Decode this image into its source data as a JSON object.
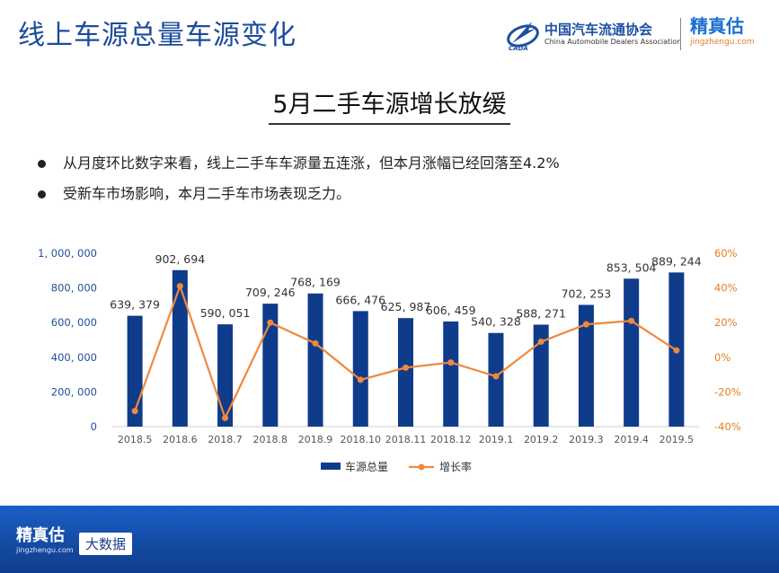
{
  "header": {
    "title": "线上车源总量车源变化",
    "caada_cn": "中国汽车流通协会",
    "caada_en": "China Automobile Dealers Association",
    "caada_abbr": "CADA",
    "jzg_cn": "精真估",
    "jzg_url": "jingzhengu.com"
  },
  "subtitle": "5月二手车源增长放缓",
  "bullets": [
    "从月度环比数字来看，线上二手车车源量五连涨，但本月涨幅已经回落至4.2%",
    "受新车市场影响，本月二手车市场表现乏力。"
  ],
  "footer": {
    "brand_cn": "精真估",
    "brand_url": "jingzhengu.com",
    "tag": "大数据"
  },
  "colors": {
    "bar": "#0f3c8a",
    "line": "#f0883e",
    "axis_left": "#1f4f9a",
    "axis_right": "#e67e22"
  },
  "chart_data": {
    "type": "bar+line",
    "categories": [
      "2018.5",
      "2018.6",
      "2018.7",
      "2018.8",
      "2018.9",
      "2018.10",
      "2018.11",
      "2018.12",
      "2019.1",
      "2019.2",
      "2019.3",
      "2019.4",
      "2019.5"
    ],
    "series": [
      {
        "name": "车源总量",
        "type": "bar",
        "axis": "left",
        "values": [
          639379,
          902694,
          590051,
          709246,
          768169,
          666476,
          625987,
          606459,
          540328,
          588271,
          702253,
          853504,
          889244
        ],
        "labels": [
          "639, 379",
          "902, 694",
          "590, 051",
          "709, 246",
          "768, 169",
          "666, 476",
          "625, 987",
          "606, 459",
          "540, 328",
          "588, 271",
          "702, 253",
          "853, 504",
          "889, 244"
        ]
      },
      {
        "name": "增长率",
        "type": "line",
        "axis": "right",
        "values": [
          -31,
          41,
          -35,
          20,
          8,
          -13,
          -6,
          -3,
          -11,
          9,
          19,
          21,
          4
        ]
      }
    ],
    "y_left": {
      "range": [
        0,
        1000000
      ],
      "ticks": [
        "0",
        "200, 000",
        "400, 000",
        "600, 000",
        "800, 000",
        "1, 000, 000"
      ]
    },
    "y_right": {
      "range": [
        -40,
        60
      ],
      "ticks": [
        "-40%",
        "-20%",
        "0%",
        "20%",
        "40%",
        "60%"
      ]
    },
    "legend_position": "bottom-center",
    "grid": false
  }
}
